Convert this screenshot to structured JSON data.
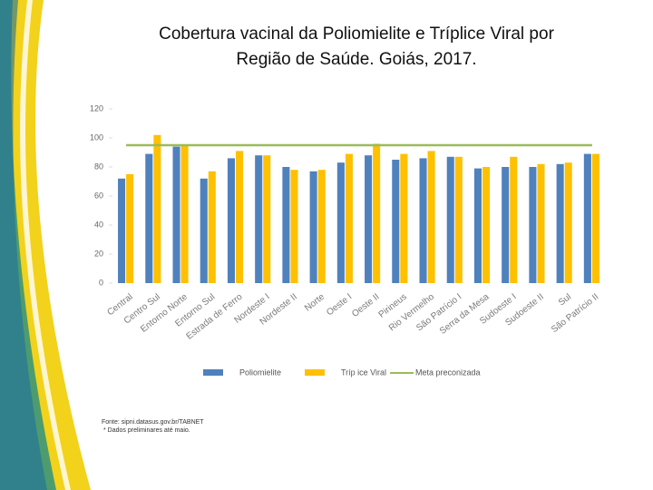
{
  "chart_data": {
    "type": "bar",
    "title": [
      "Cobertura vacinal da Poliomielite e Tríplice Viral por",
      "Região de Saúde. Goiás, 2017."
    ],
    "categories": [
      "Central",
      "Centro Sul",
      "Entorno Norte",
      "Entorno Sul",
      "Estrada de Ferro",
      "Nordeste I",
      "Nordeste II",
      "Norte",
      "Oeste I",
      "Oeste II",
      "Pirineus",
      "Rio Vermelho",
      "São Patrício I",
      "Serra da Mesa",
      "Sudoeste I",
      "Sudoeste II",
      "Sul",
      "São Patrício II"
    ],
    "series": [
      {
        "name": "Poliomielite",
        "color": "#4f81bd",
        "values": [
          72,
          89,
          94,
          72,
          86,
          88,
          80,
          77,
          83,
          88,
          85,
          86,
          87,
          79,
          80,
          80,
          82,
          89
        ]
      },
      {
        "name": "Tríp ice Viral",
        "color": "#ffc000",
        "values": [
          75,
          102,
          95,
          77,
          91,
          88,
          78,
          78,
          89,
          96,
          89,
          91,
          87,
          80,
          87,
          82,
          83,
          89
        ]
      },
      {
        "name": "Meta preconizada",
        "color": "#9bbb59",
        "type": "line",
        "values": [
          95,
          95,
          95,
          95,
          95,
          95,
          95,
          95,
          95,
          95,
          95,
          95,
          95,
          95,
          95,
          95,
          95,
          95
        ]
      }
    ],
    "ylim": [
      0,
      120
    ],
    "yticks": [
      0,
      20,
      40,
      60,
      80,
      100,
      120
    ],
    "grid": false,
    "source": "Fonte: sipni.datasus.gov.br/TABNET",
    "note": "* Dados preliminares até maio."
  }
}
